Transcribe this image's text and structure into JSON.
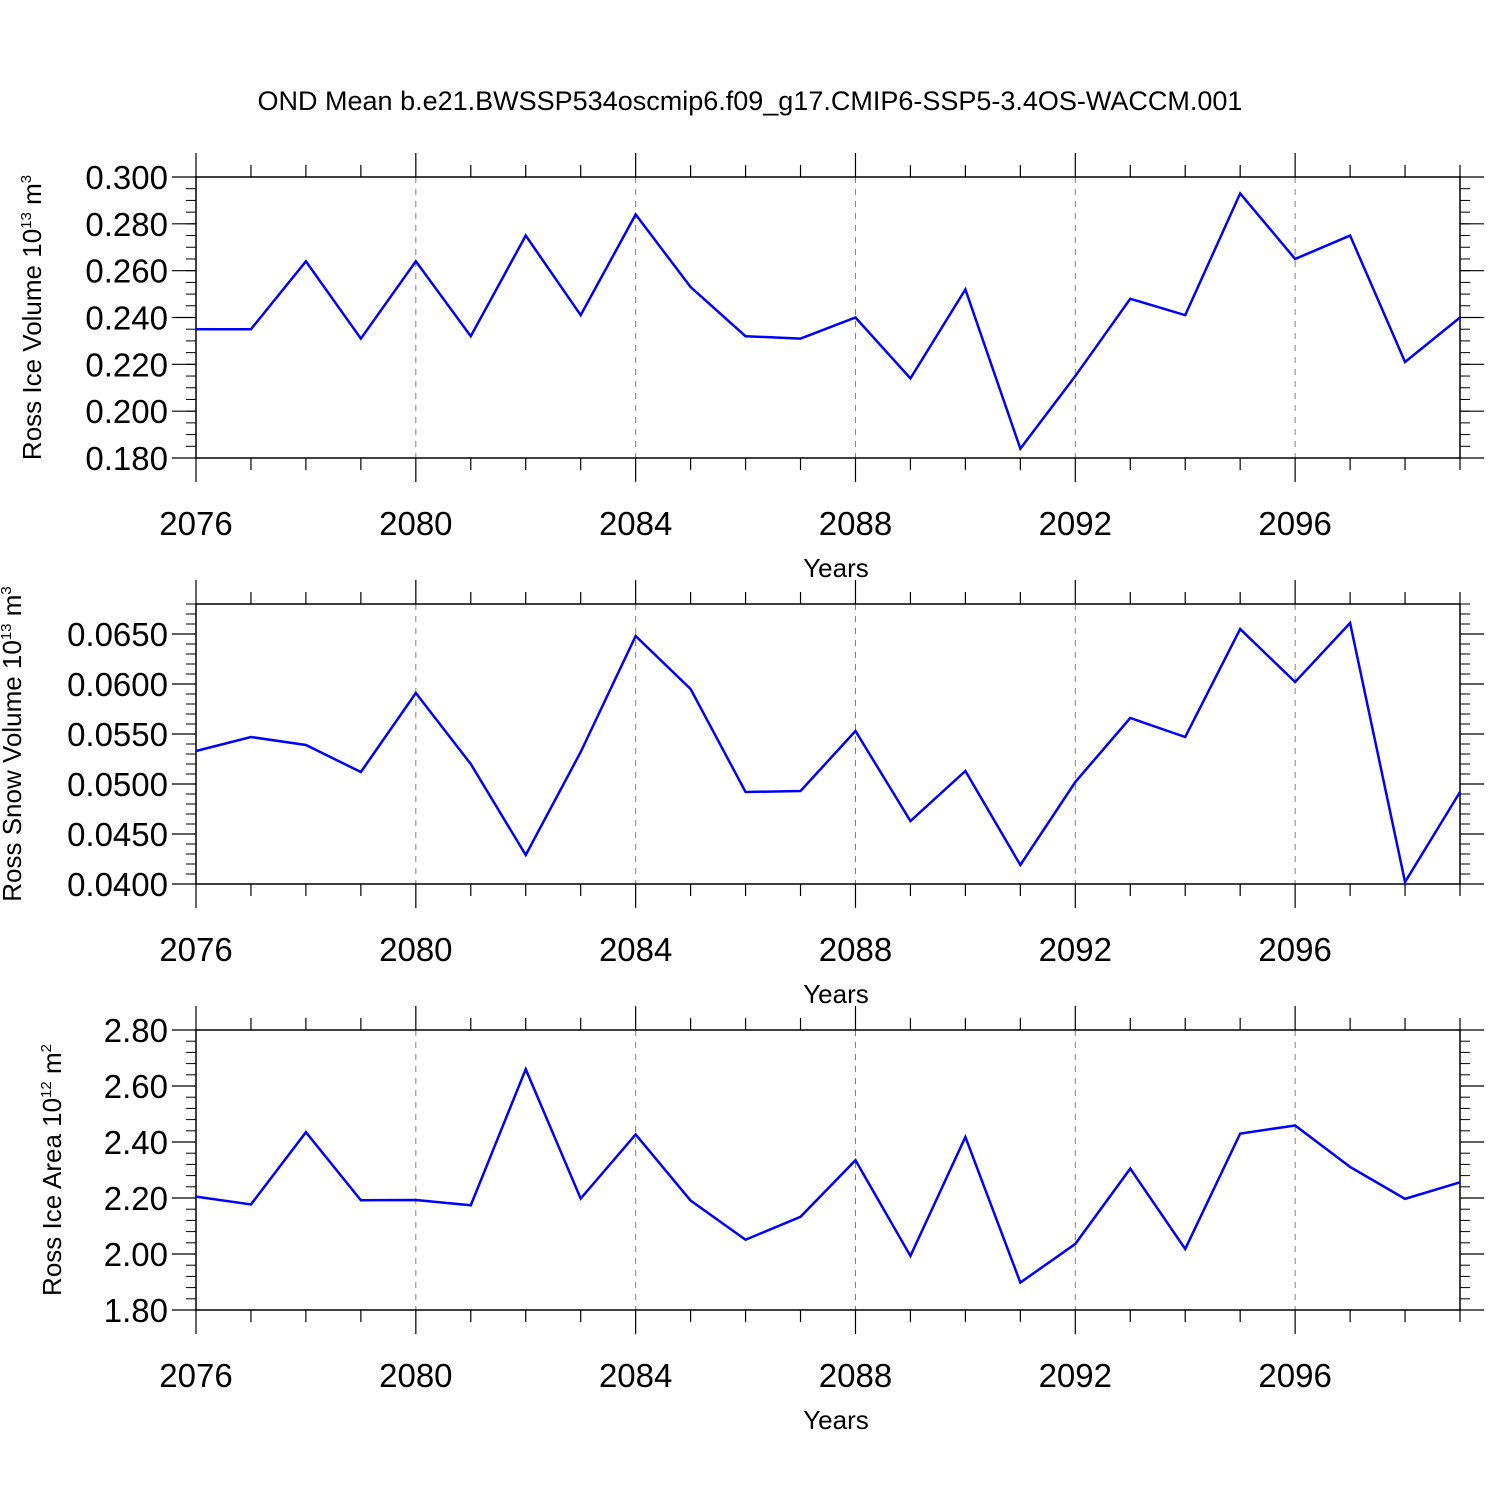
{
  "title": "OND Mean b.e21.BWSSP534oscmip6.f09_g17.CMIP6-SSP5-3.4OS-WACCM.001",
  "colors": {
    "line": "#0000ff",
    "axis": "#000000",
    "grid": "#808080"
  },
  "chart_data": [
    {
      "type": "line",
      "title": "",
      "xlabel": "Years",
      "ylabel": "Ross Ice Volume 10",
      "ylabel_exponent": "13",
      "ylabel_unit": " m",
      "ylabel_unit_exponent": "3",
      "x": [
        2076,
        2077,
        2078,
        2079,
        2080,
        2081,
        2082,
        2083,
        2084,
        2085,
        2086,
        2087,
        2088,
        2089,
        2090,
        2091,
        2092,
        2093,
        2094,
        2095,
        2096,
        2097,
        2098,
        2099
      ],
      "series": [
        {
          "values": [
            0.235,
            0.235,
            0.264,
            0.231,
            0.264,
            0.232,
            0.275,
            0.241,
            0.284,
            0.253,
            0.232,
            0.231,
            0.24,
            0.214,
            0.252,
            0.184,
            0.215,
            0.248,
            0.241,
            0.293,
            0.265,
            0.275,
            0.221,
            0.24
          ]
        }
      ],
      "xlim": [
        2076,
        2099
      ],
      "ylim": [
        0.18,
        0.3
      ],
      "xticks": [
        "2076",
        "2080",
        "2084",
        "2088",
        "2092",
        "2096"
      ],
      "yticks": [
        "0.180",
        "0.200",
        "0.220",
        "0.240",
        "0.260",
        "0.280",
        "0.300"
      ],
      "grid": "vertical dashed at major x ticks"
    },
    {
      "type": "line",
      "title": "",
      "xlabel": "Years",
      "ylabel": "Ross Snow Volume 10",
      "ylabel_exponent": "13",
      "ylabel_unit": " m",
      "ylabel_unit_exponent": "3",
      "x": [
        2076,
        2077,
        2078,
        2079,
        2080,
        2081,
        2082,
        2083,
        2084,
        2085,
        2086,
        2087,
        2088,
        2089,
        2090,
        2091,
        2092,
        2093,
        2094,
        2095,
        2096,
        2097,
        2098,
        2099
      ],
      "series": [
        {
          "values": [
            0.0533,
            0.0547,
            0.0539,
            0.0512,
            0.0591,
            0.052,
            0.0429,
            0.0532,
            0.0648,
            0.0595,
            0.0492,
            0.0493,
            0.0553,
            0.0463,
            0.0513,
            0.0419,
            0.0502,
            0.0566,
            0.0547,
            0.0655,
            0.0602,
            0.0661,
            0.0402,
            0.0492
          ]
        }
      ],
      "xlim": [
        2076,
        2099
      ],
      "ylim": [
        0.04,
        0.068
      ],
      "xticks": [
        "2076",
        "2080",
        "2084",
        "2088",
        "2092",
        "2096"
      ],
      "yticks": [
        "0.0400",
        "0.0450",
        "0.0500",
        "0.0550",
        "0.0600",
        "0.0650"
      ],
      "grid": "vertical dashed at major x ticks"
    },
    {
      "type": "line",
      "title": "",
      "xlabel": "Years",
      "ylabel": "Ross Ice Area 10",
      "ylabel_exponent": "12",
      "ylabel_unit": " m",
      "ylabel_unit_exponent": "2",
      "x": [
        2076,
        2077,
        2078,
        2079,
        2080,
        2081,
        2082,
        2083,
        2084,
        2085,
        2086,
        2087,
        2088,
        2089,
        2090,
        2091,
        2092,
        2093,
        2094,
        2095,
        2096,
        2097,
        2098,
        2099
      ],
      "series": [
        {
          "values": [
            2.205,
            2.177,
            2.435,
            2.192,
            2.193,
            2.174,
            2.66,
            2.198,
            2.427,
            2.191,
            2.051,
            2.133,
            2.335,
            1.993,
            2.418,
            1.898,
            2.036,
            2.305,
            2.018,
            2.43,
            2.459,
            2.311,
            2.197,
            2.256
          ]
        }
      ],
      "xlim": [
        2076,
        2099
      ],
      "ylim": [
        1.8,
        2.8
      ],
      "xticks": [
        "2076",
        "2080",
        "2084",
        "2088",
        "2092",
        "2096"
      ],
      "yticks": [
        "1.80",
        "2.00",
        "2.20",
        "2.40",
        "2.60",
        "2.80"
      ],
      "grid": "vertical dashed at major x ticks"
    }
  ]
}
